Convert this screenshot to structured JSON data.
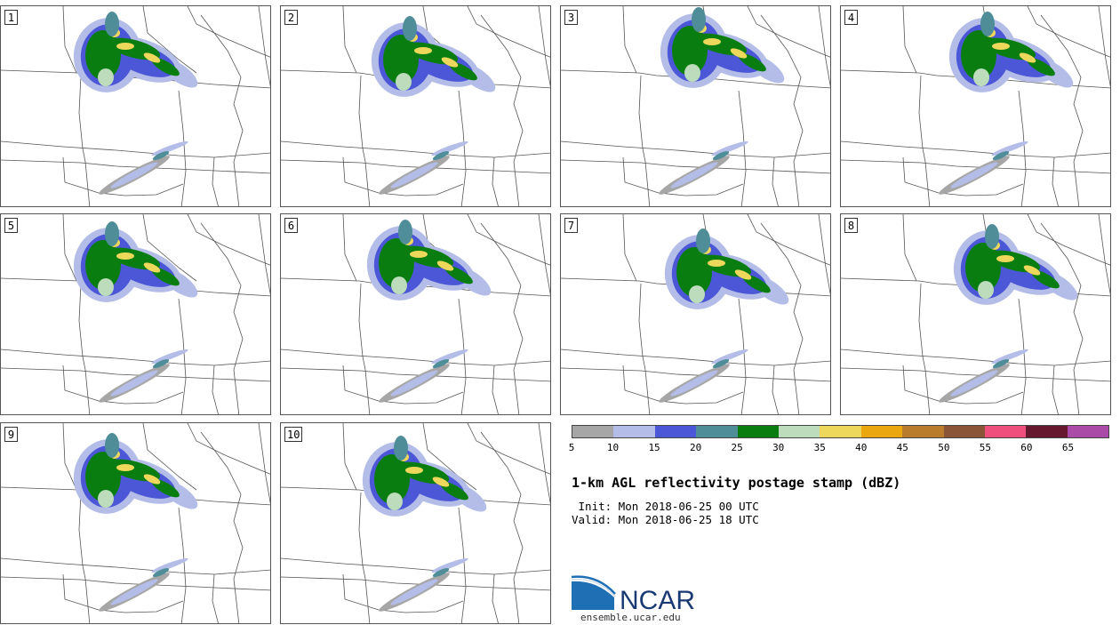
{
  "panels": [
    "1",
    "2",
    "3",
    "4",
    "5",
    "6",
    "7",
    "8",
    "9",
    "10"
  ],
  "legend": {
    "colors": [
      "#a6a6a6",
      "#b4bde8",
      "#4b57d6",
      "#4f8e99",
      "#0a7d10",
      "#bcdcbc",
      "#eed85c",
      "#eaa710",
      "#b97c2c",
      "#8a5437",
      "#ee4f7c",
      "#66182e",
      "#aa4ba7"
    ],
    "ticks": [
      "5",
      "10",
      "15",
      "20",
      "25",
      "30",
      "35",
      "40",
      "45",
      "50",
      "55",
      "60",
      "65"
    ]
  },
  "title": "1-km AGL reflectivity postage stamp (dBZ)",
  "init_line": " Init: Mon 2018-06-25 00 UTC",
  "valid_line": "Valid: Mon 2018-06-25 18 UTC",
  "logo": {
    "text": "NCAR",
    "url": "ensemble.ucar.edu",
    "color": "#1a3a73"
  }
}
